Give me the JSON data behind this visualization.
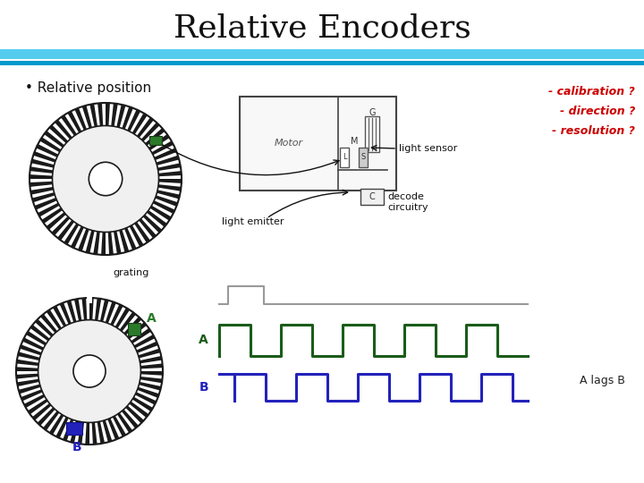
{
  "title": "Relative Encoders",
  "title_fontsize": 26,
  "background_color": "#ffffff",
  "header_bar_color1": "#55ccee",
  "header_bar_color2": "#0099cc",
  "bullet_text": "• Relative position",
  "right_labels": [
    "- calibration ?",
    "- direction ?",
    "- resolution ?"
  ],
  "right_label_color": "#cc0000",
  "annotations": {
    "light_sensor": "light sensor",
    "light_emitter": "light emitter",
    "decode_circuitry": "decode\ncircuitry",
    "grating": "grating",
    "A_lags_B": "A lags B",
    "A_label": "A",
    "B_label": "B",
    "Motor": "Motor",
    "G": "G",
    "M": "M",
    "L": "L",
    "S": "S",
    "C": "C"
  },
  "encoder_disk_color": "#1a1a1a",
  "encoder_inner_color": "#f0f0f0",
  "green_sensor_color": "#2a7a2a",
  "blue_sensor_color": "#2222bb",
  "signal_A_color": "#1a5c1a",
  "signal_B_color": "#2222bb",
  "index_signal_color": "#999999",
  "arrow_color": "#111111",
  "motor_box_facecolor": "#f8f8f8",
  "motor_box_edgecolor": "#444444",
  "decode_box_facecolor": "#f0f0f0",
  "decode_box_edgecolor": "#444444"
}
